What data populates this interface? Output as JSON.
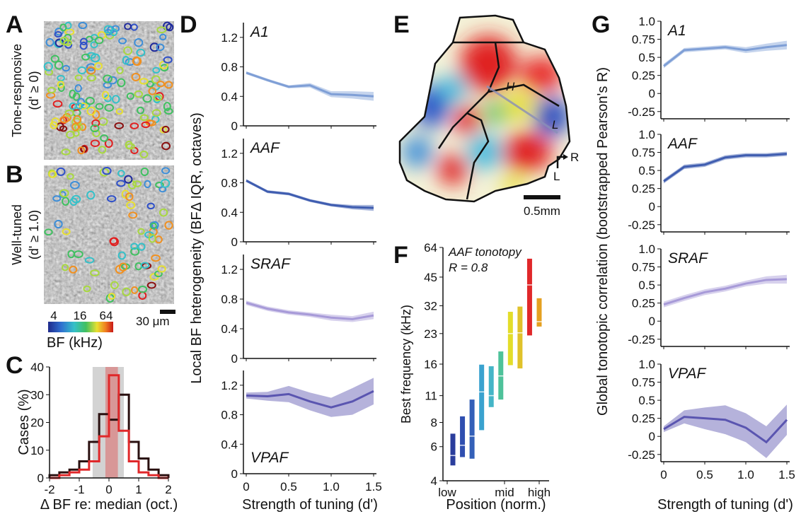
{
  "panel_labels": {
    "A": "A",
    "B": "B",
    "C": "C",
    "D": "D",
    "E": "E",
    "F": "F",
    "G": "G"
  },
  "imaging": {
    "a_ylabel_line1": "Tone-respnosive",
    "a_ylabel_line2": "(d' ≥ 0)",
    "b_ylabel_line1": "Well-tuned",
    "b_ylabel_line2": "(d' ≥ 1.0)",
    "scalebar_label": "30 μm",
    "colorbar_ticks": [
      "4",
      "16",
      "64"
    ],
    "colorbar_label": "BF (kHz)"
  },
  "map": {
    "scalebar_label": "0.5mm",
    "orientation_r": "R",
    "orientation_l": "L",
    "axis_high": "H",
    "axis_low": "L"
  },
  "colors": {
    "A1": "#7f9fd6",
    "AAF": "#3f5db0",
    "SRAF": "#a79ad8",
    "VPAF": "#5a55b0",
    "hist_dark": "#2a1010",
    "hist_red": "#e0282a",
    "shade_red": "#d89090",
    "shade_gray": "#c8c8c8"
  },
  "chart_data": [
    {
      "panel": "C",
      "type": "histogram",
      "xlabel": "Δ BF re: median (oct.)",
      "ylabel": "Cases (%)",
      "xlim": [
        -2,
        2
      ],
      "ylim": [
        0,
        40
      ],
      "xticks": [
        "-2",
        "-1",
        "0",
        "1",
        "2"
      ],
      "yticks": [
        "0",
        "10",
        "20",
        "30",
        "40"
      ],
      "bin_edges": [
        -2,
        -1.67,
        -1.33,
        -1,
        -0.67,
        -0.33,
        0,
        0.33,
        0.67,
        1,
        1.33,
        1.67,
        2
      ],
      "series": [
        {
          "values": [
            1,
            2,
            3,
            6,
            13,
            23,
            21,
            30,
            13,
            7,
            3,
            1
          ],
          "color": "#2a1010"
        },
        {
          "values": [
            0,
            1,
            2,
            3,
            6,
            15,
            37,
            17,
            6,
            2,
            1,
            0
          ],
          "color": "#e0282a"
        }
      ]
    },
    {
      "panel": "D",
      "type": "line",
      "xlabel": "Strength of tuning (d')",
      "ylabel": "Local BF heterogeneity (BFΔ IQR, octaves)",
      "x": [
        0,
        0.25,
        0.5,
        0.75,
        1.0,
        1.25,
        1.5
      ],
      "xticks": [
        "0",
        "0.5",
        "1.0",
        "1.5"
      ],
      "ylim": [
        0,
        1.4
      ],
      "yticks": [
        "0",
        "0.4",
        "0.8",
        "1.2"
      ],
      "series": [
        {
          "name": "A1",
          "mean": [
            0.72,
            0.62,
            0.53,
            0.55,
            0.43,
            0.42,
            0.4
          ],
          "lo": [
            0.7,
            0.6,
            0.51,
            0.52,
            0.39,
            0.37,
            0.34
          ],
          "hi": [
            0.74,
            0.64,
            0.55,
            0.58,
            0.47,
            0.47,
            0.46
          ]
        },
        {
          "name": "AAF",
          "mean": [
            0.83,
            0.68,
            0.65,
            0.56,
            0.5,
            0.47,
            0.46
          ],
          "lo": [
            0.81,
            0.66,
            0.63,
            0.54,
            0.48,
            0.44,
            0.42
          ],
          "hi": [
            0.85,
            0.7,
            0.67,
            0.58,
            0.52,
            0.5,
            0.5
          ]
        },
        {
          "name": "SRAF",
          "mean": [
            0.75,
            0.67,
            0.62,
            0.59,
            0.55,
            0.53,
            0.58
          ],
          "lo": [
            0.72,
            0.64,
            0.59,
            0.56,
            0.51,
            0.49,
            0.53
          ],
          "hi": [
            0.78,
            0.7,
            0.65,
            0.62,
            0.59,
            0.57,
            0.63
          ]
        },
        {
          "name": "VPAF",
          "mean": [
            1.06,
            1.05,
            1.08,
            0.98,
            0.9,
            0.98,
            1.12
          ],
          "lo": [
            1.02,
            0.99,
            0.97,
            0.86,
            0.77,
            0.8,
            0.94
          ],
          "hi": [
            1.1,
            1.11,
            1.19,
            1.1,
            1.03,
            1.16,
            1.3
          ]
        }
      ]
    },
    {
      "panel": "F",
      "type": "range",
      "title": "AAF tonotopy",
      "annotation": "R = 0.8",
      "xlabel": "Position (norm.)",
      "ylabel": "Best frequency (kHz)",
      "xticks": [
        "low",
        "mid",
        "high"
      ],
      "yticks": [
        "4",
        "6",
        "8",
        "11",
        "16",
        "23",
        "32",
        "45",
        "64"
      ],
      "ylim": [
        4,
        64
      ],
      "yscale": "log2",
      "bars": [
        {
          "lo": 4.8,
          "hi": 7.0,
          "median": 5.4,
          "color": "#2a3d9c"
        },
        {
          "lo": 5.3,
          "hi": 8.6,
          "median": 6.1,
          "color": "#2f4fb0"
        },
        {
          "lo": 5.2,
          "hi": 10.5,
          "median": 6.8,
          "color": "#3460b8"
        },
        {
          "lo": 7.3,
          "hi": 15.9,
          "median": 11.5,
          "color": "#3aa2cf"
        },
        {
          "lo": 9.6,
          "hi": 15.6,
          "median": 11.0,
          "color": "#45b5c7"
        },
        {
          "lo": 10.5,
          "hi": 18.6,
          "median": 13.9,
          "color": "#4ec29a"
        },
        {
          "lo": 15.8,
          "hi": 29.8,
          "median": 23.0,
          "color": "#e3dd2a"
        },
        {
          "lo": 15.2,
          "hi": 31.7,
          "median": 23.2,
          "color": "#e0c22a"
        },
        {
          "lo": 22.5,
          "hi": 56.0,
          "median": 41.0,
          "color": "#e0282a"
        },
        {
          "lo": 25.0,
          "hi": 35.0,
          "median": 26.5,
          "color": "#e5a020"
        }
      ]
    },
    {
      "panel": "G",
      "type": "line",
      "xlabel": "Strength of tuning (d')",
      "ylabel": "Global tonotopic correlation (bootstrapped Pearson's R)",
      "x": [
        0,
        0.25,
        0.5,
        0.75,
        1.0,
        1.25,
        1.5
      ],
      "xticks": [
        "0",
        "0.5",
        "1.0",
        "1.5"
      ],
      "ylim": [
        -0.35,
        1.0
      ],
      "yticks": [
        "1.0",
        "0.75",
        "0.5",
        "0.25",
        "0",
        "-0.25"
      ],
      "series": [
        {
          "name": "A1",
          "mean": [
            0.38,
            0.6,
            0.62,
            0.64,
            0.6,
            0.64,
            0.67
          ],
          "lo": [
            0.35,
            0.57,
            0.59,
            0.61,
            0.56,
            0.59,
            0.61
          ],
          "hi": [
            0.41,
            0.63,
            0.65,
            0.67,
            0.64,
            0.69,
            0.73
          ]
        },
        {
          "name": "AAF",
          "mean": [
            0.35,
            0.55,
            0.58,
            0.68,
            0.71,
            0.71,
            0.73
          ],
          "lo": [
            0.32,
            0.52,
            0.55,
            0.65,
            0.68,
            0.68,
            0.7
          ],
          "hi": [
            0.38,
            0.58,
            0.61,
            0.71,
            0.74,
            0.74,
            0.76
          ]
        },
        {
          "name": "SRAF",
          "mean": [
            0.23,
            0.32,
            0.4,
            0.45,
            0.52,
            0.57,
            0.58
          ],
          "lo": [
            0.19,
            0.28,
            0.36,
            0.41,
            0.48,
            0.52,
            0.52
          ],
          "hi": [
            0.27,
            0.36,
            0.44,
            0.49,
            0.56,
            0.62,
            0.64
          ]
        },
        {
          "name": "VPAF",
          "mean": [
            0.1,
            0.27,
            0.25,
            0.23,
            0.12,
            -0.08,
            0.23
          ],
          "lo": [
            0.06,
            0.18,
            0.1,
            0.03,
            -0.08,
            -0.3,
            0.02
          ],
          "hi": [
            0.14,
            0.36,
            0.4,
            0.43,
            0.32,
            0.14,
            0.44
          ]
        }
      ]
    }
  ]
}
